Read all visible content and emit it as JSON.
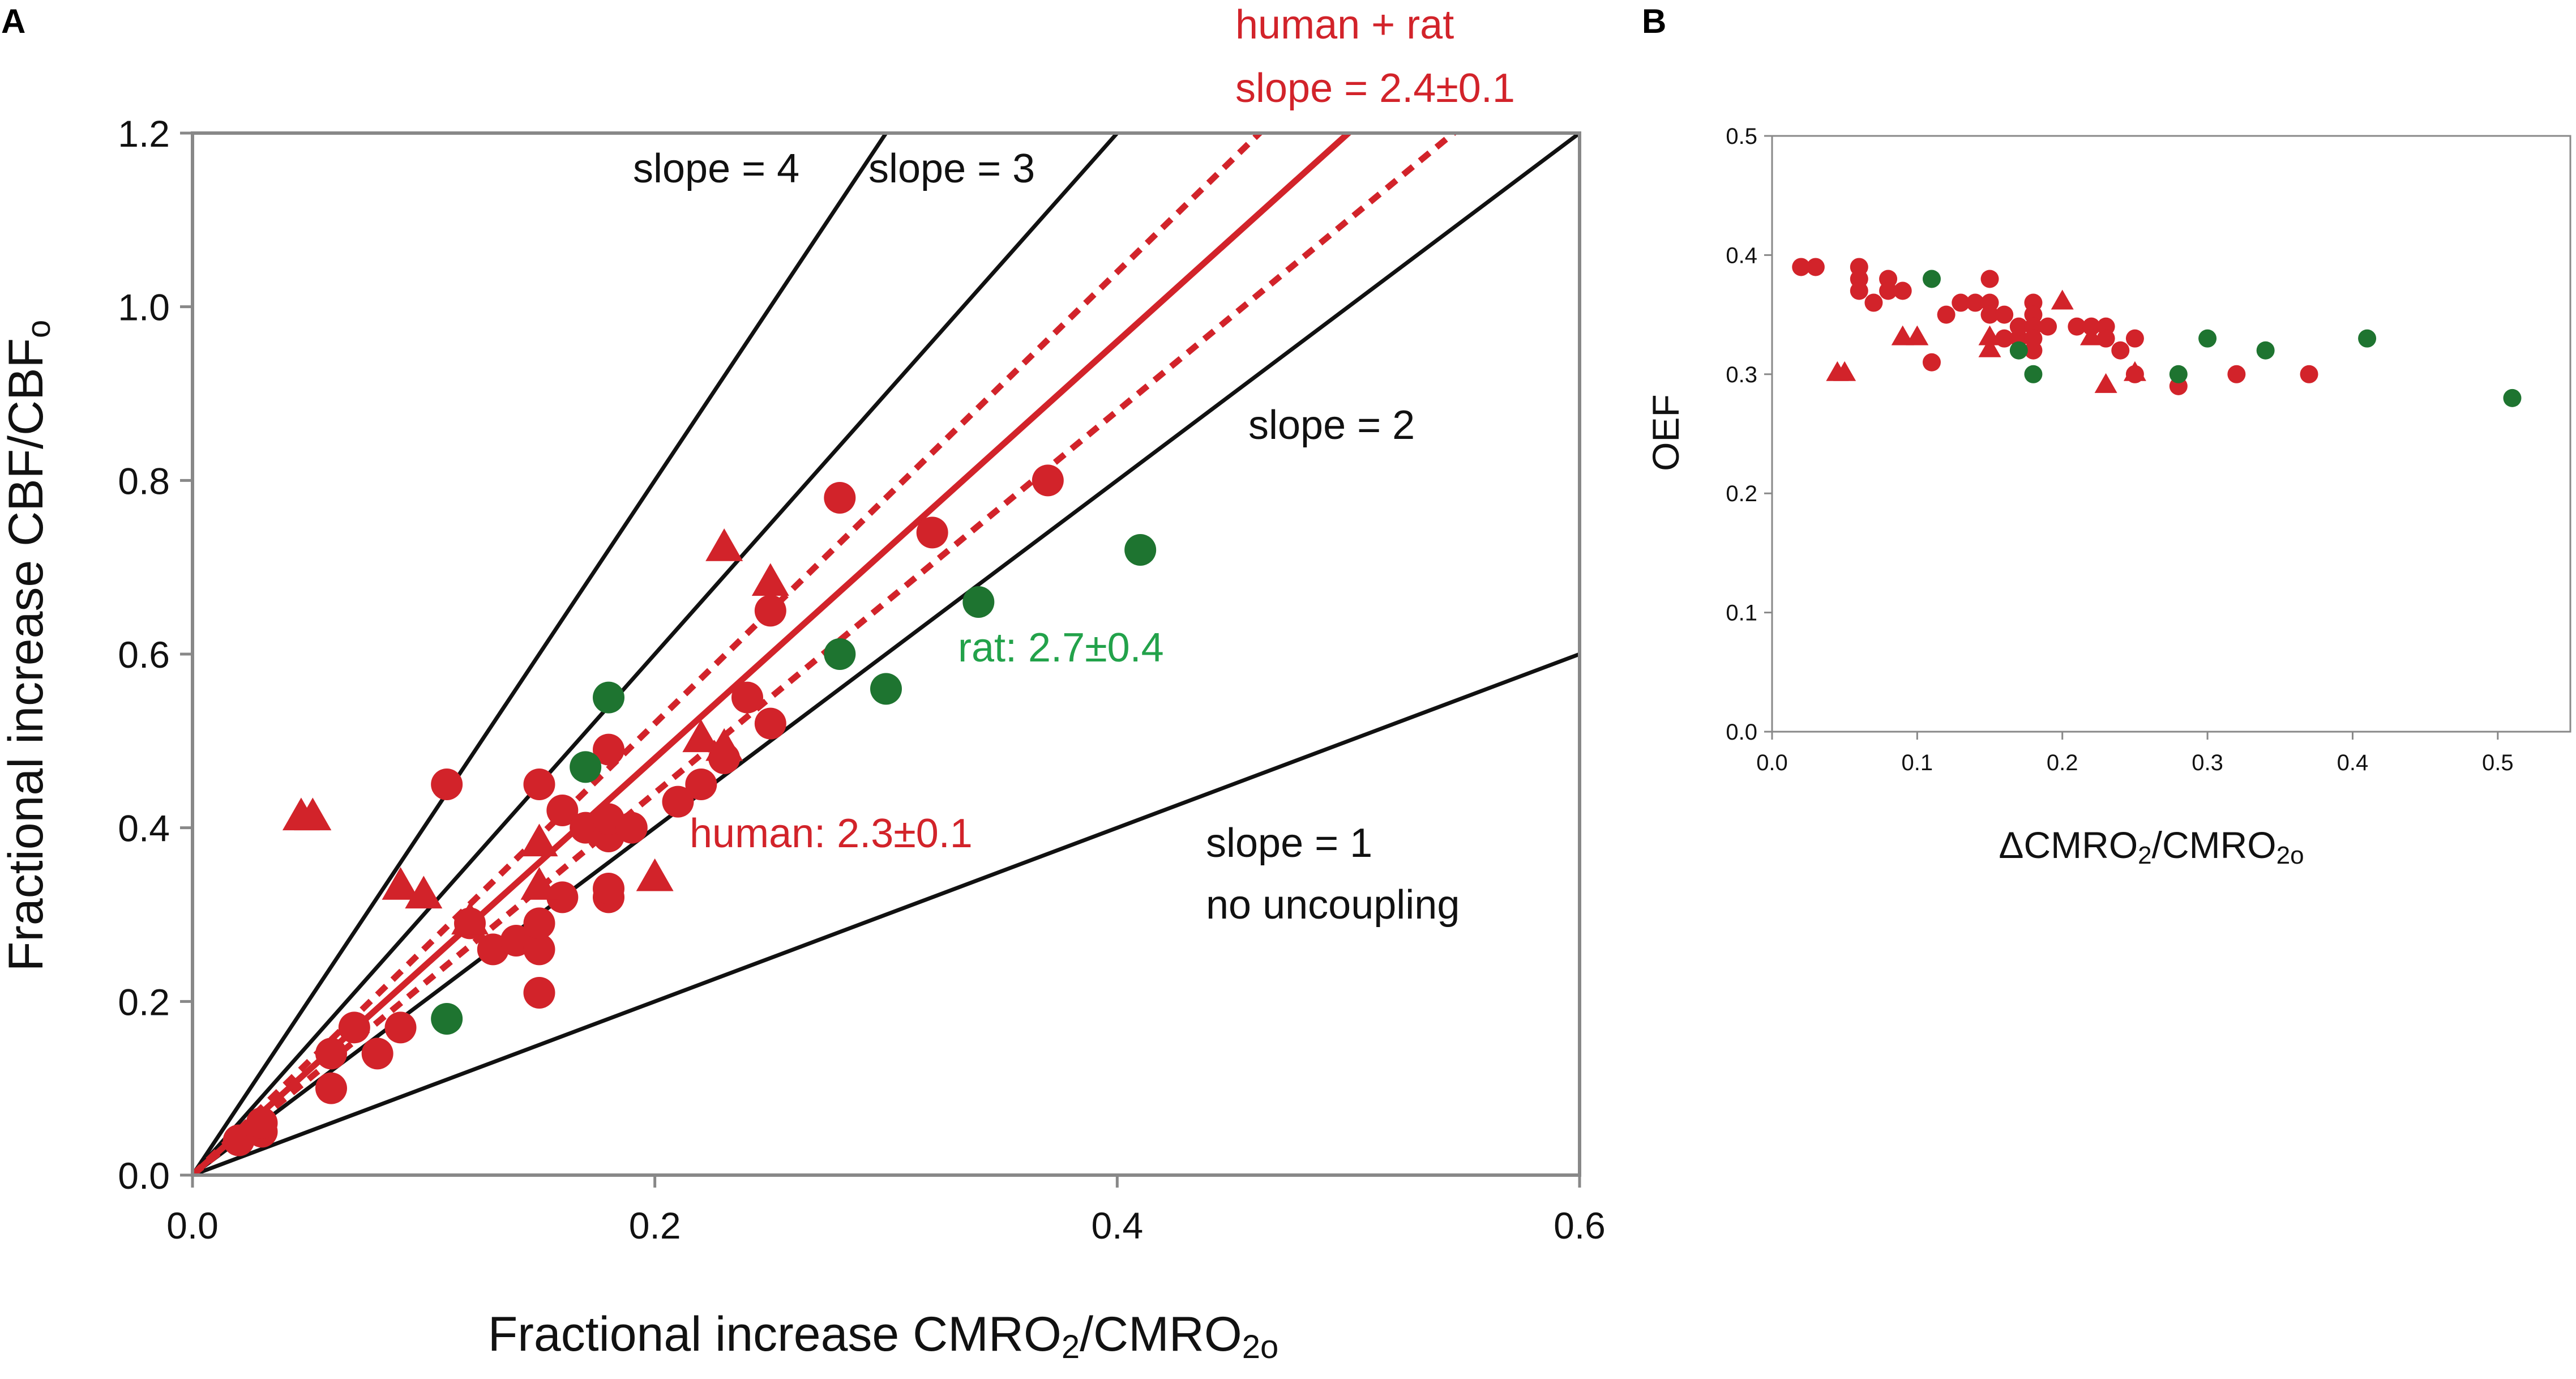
{
  "panels": {
    "a": "A",
    "b": "B"
  },
  "colors": {
    "human": "#d2232a",
    "rat": "#1e7430",
    "rat_label": "#22a24a",
    "line": "#111111",
    "frame": "#888888"
  },
  "chart_data": [
    {
      "type": "scatter",
      "panel": "A",
      "xlim": [
        0,
        0.6
      ],
      "ylim": [
        0,
        1.2
      ],
      "grid": false,
      "x_ticks": [
        "0.0",
        "0.2",
        "0.4",
        "0.6"
      ],
      "y_ticks": [
        "0.0",
        "0.2",
        "0.4",
        "0.6",
        "0.8",
        "1.0",
        "1.2"
      ],
      "xlabel": {
        "main": "Fractional increase CMRO",
        "sub1": "2",
        "mid": "/CMRO",
        "sub2": "2o"
      },
      "ylabel": {
        "main": "Fractional increase CBF/CBF",
        "sub": "o"
      },
      "reference_lines": [
        {
          "slope": 4,
          "label": "slope = 4"
        },
        {
          "slope": 3,
          "label": "slope = 3"
        },
        {
          "slope": 2,
          "label": "slope = 2"
        },
        {
          "slope": 1,
          "label": "slope = 1",
          "label2": "no uncoupling"
        }
      ],
      "fit": {
        "slope": 2.4,
        "lower": 2.2,
        "upper": 2.6,
        "label1": "human + rat",
        "label2": "slope = 2.4±0.1"
      },
      "series_labels": {
        "human": "human: 2.3±0.1",
        "rat": "rat: 2.7±0.4"
      },
      "series": [
        {
          "name": "human",
          "marker": "circle",
          "points": [
            [
              0.02,
              0.04
            ],
            [
              0.03,
              0.05
            ],
            [
              0.03,
              0.06
            ],
            [
              0.06,
              0.1
            ],
            [
              0.06,
              0.14
            ],
            [
              0.07,
              0.17
            ],
            [
              0.08,
              0.14
            ],
            [
              0.09,
              0.17
            ],
            [
              0.11,
              0.45
            ],
            [
              0.12,
              0.29
            ],
            [
              0.13,
              0.26
            ],
            [
              0.14,
              0.27
            ],
            [
              0.15,
              0.21
            ],
            [
              0.15,
              0.26
            ],
            [
              0.15,
              0.29
            ],
            [
              0.15,
              0.45
            ],
            [
              0.16,
              0.32
            ],
            [
              0.16,
              0.42
            ],
            [
              0.17,
              0.4
            ],
            [
              0.18,
              0.32
            ],
            [
              0.18,
              0.33
            ],
            [
              0.18,
              0.39
            ],
            [
              0.18,
              0.41
            ],
            [
              0.18,
              0.49
            ],
            [
              0.19,
              0.4
            ],
            [
              0.21,
              0.43
            ],
            [
              0.22,
              0.45
            ],
            [
              0.23,
              0.48
            ],
            [
              0.24,
              0.55
            ],
            [
              0.25,
              0.52
            ],
            [
              0.25,
              0.65
            ],
            [
              0.28,
              0.78
            ],
            [
              0.32,
              0.74
            ],
            [
              0.37,
              0.8
            ]
          ]
        },
        {
          "name": "human",
          "marker": "triangle",
          "points": [
            [
              0.047,
              0.41
            ],
            [
              0.052,
              0.41
            ],
            [
              0.09,
              0.33
            ],
            [
              0.1,
              0.32
            ],
            [
              0.12,
              0.29
            ],
            [
              0.15,
              0.38
            ],
            [
              0.15,
              0.33
            ],
            [
              0.2,
              0.34
            ],
            [
              0.22,
              0.5
            ],
            [
              0.23,
              0.49
            ],
            [
              0.23,
              0.72
            ],
            [
              0.25,
              0.68
            ]
          ]
        },
        {
          "name": "rat",
          "marker": "circle",
          "points": [
            [
              0.11,
              0.18
            ],
            [
              0.17,
              0.47
            ],
            [
              0.18,
              0.55
            ],
            [
              0.28,
              0.6
            ],
            [
              0.3,
              0.56
            ],
            [
              0.34,
              0.66
            ],
            [
              0.41,
              0.72
            ]
          ]
        }
      ]
    },
    {
      "type": "scatter",
      "panel": "B",
      "xlim": [
        0,
        0.55
      ],
      "ylim": [
        0,
        0.5
      ],
      "grid": false,
      "x_ticks": [
        "0.0",
        "0.1",
        "0.2",
        "0.3",
        "0.4",
        "0.5"
      ],
      "y_ticks": [
        "0.0",
        "0.1",
        "0.2",
        "0.3",
        "0.4",
        "0.5"
      ],
      "xlabel": {
        "main": "ΔCMRO",
        "sub1": "2",
        "mid": "/CMRO",
        "sub2": "2o"
      },
      "ylabel": "OEF",
      "series": [
        {
          "name": "human",
          "marker": "circle",
          "points": [
            [
              0.02,
              0.39
            ],
            [
              0.03,
              0.39
            ],
            [
              0.06,
              0.39
            ],
            [
              0.06,
              0.38
            ],
            [
              0.06,
              0.37
            ],
            [
              0.07,
              0.36
            ],
            [
              0.08,
              0.38
            ],
            [
              0.08,
              0.37
            ],
            [
              0.09,
              0.37
            ],
            [
              0.11,
              0.31
            ],
            [
              0.12,
              0.35
            ],
            [
              0.13,
              0.36
            ],
            [
              0.14,
              0.36
            ],
            [
              0.15,
              0.38
            ],
            [
              0.15,
              0.36
            ],
            [
              0.15,
              0.35
            ],
            [
              0.16,
              0.35
            ],
            [
              0.16,
              0.33
            ],
            [
              0.17,
              0.33
            ],
            [
              0.17,
              0.34
            ],
            [
              0.18,
              0.36
            ],
            [
              0.18,
              0.35
            ],
            [
              0.18,
              0.34
            ],
            [
              0.18,
              0.33
            ],
            [
              0.18,
              0.32
            ],
            [
              0.19,
              0.34
            ],
            [
              0.21,
              0.34
            ],
            [
              0.22,
              0.34
            ],
            [
              0.23,
              0.34
            ],
            [
              0.23,
              0.33
            ],
            [
              0.24,
              0.32
            ],
            [
              0.25,
              0.33
            ],
            [
              0.25,
              0.3
            ],
            [
              0.28,
              0.29
            ],
            [
              0.32,
              0.3
            ],
            [
              0.37,
              0.3
            ]
          ]
        },
        {
          "name": "human",
          "marker": "triangle",
          "points": [
            [
              0.045,
              0.3
            ],
            [
              0.05,
              0.3
            ],
            [
              0.09,
              0.33
            ],
            [
              0.1,
              0.33
            ],
            [
              0.15,
              0.33
            ],
            [
              0.15,
              0.32
            ],
            [
              0.2,
              0.36
            ],
            [
              0.22,
              0.33
            ],
            [
              0.23,
              0.29
            ],
            [
              0.25,
              0.3
            ]
          ]
        },
        {
          "name": "rat",
          "marker": "circle",
          "points": [
            [
              0.11,
              0.38
            ],
            [
              0.17,
              0.32
            ],
            [
              0.18,
              0.3
            ],
            [
              0.28,
              0.3
            ],
            [
              0.3,
              0.33
            ],
            [
              0.34,
              0.32
            ],
            [
              0.41,
              0.33
            ],
            [
              0.51,
              0.28
            ]
          ]
        }
      ]
    }
  ]
}
